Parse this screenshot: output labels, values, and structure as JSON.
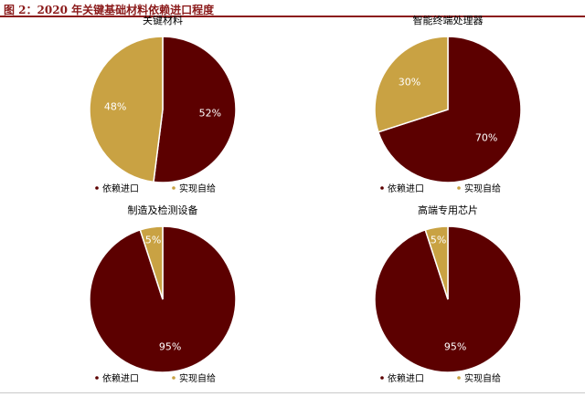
{
  "page": {
    "figure_title": "图 2：2020 年关键基础材料依赖进口程度"
  },
  "colors": {
    "import": "#5C0000",
    "self": "#C9A243",
    "title_accent": "#8B1A1A"
  },
  "legend": {
    "import_label": "依赖进口",
    "self_label": "实现自给"
  },
  "chart_data": [
    {
      "type": "pie",
      "title": "关键材料",
      "categories": [
        "依赖进口",
        "实现自给"
      ],
      "values": [
        52,
        48
      ],
      "labels": [
        "52%",
        "48%"
      ]
    },
    {
      "type": "pie",
      "title": "智能终端处理器",
      "categories": [
        "依赖进口",
        "实现自给"
      ],
      "values": [
        70,
        30
      ],
      "labels": [
        "70%",
        "30%"
      ]
    },
    {
      "type": "pie",
      "title": "制造及检测设备",
      "categories": [
        "依赖进口",
        "实现自给"
      ],
      "values": [
        95,
        5
      ],
      "labels": [
        "95%",
        "5%"
      ]
    },
    {
      "type": "pie",
      "title": "高端专用芯片",
      "categories": [
        "依赖进口",
        "实现自给"
      ],
      "values": [
        95,
        5
      ],
      "labels": [
        "95%",
        "5%"
      ]
    }
  ]
}
